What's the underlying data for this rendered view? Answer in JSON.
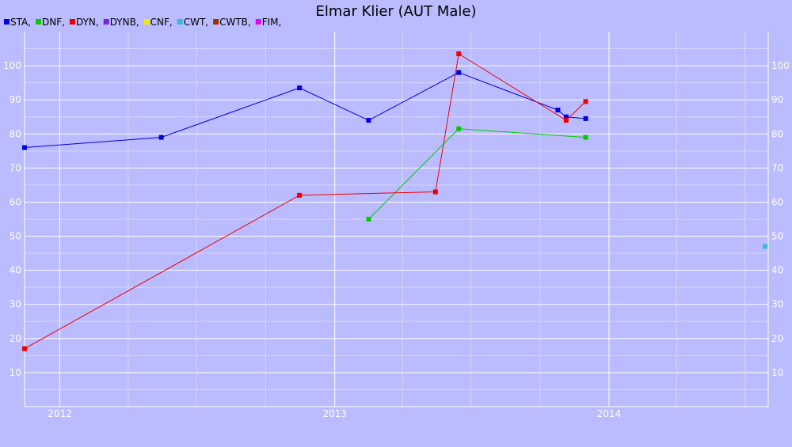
{
  "chart_data": {
    "type": "line",
    "title": "Elmar Klier (AUT Male)",
    "legend": {
      "placement": "top-left",
      "entries": [
        {
          "label": "STA,",
          "color": "#0000DD"
        },
        {
          "label": "DNF,",
          "color": "#00CC00"
        },
        {
          "label": "DYN,",
          "color": "#EE0000"
        },
        {
          "label": "DYNB,",
          "color": "#7722DD"
        },
        {
          "label": "CNF,",
          "color": "#EEEE00"
        },
        {
          "label": "CWT,",
          "color": "#33BBDD"
        },
        {
          "label": "CWTB,",
          "color": "#993300"
        },
        {
          "label": "FIM,",
          "color": "#EE00EE"
        }
      ]
    },
    "x_axis": {
      "type": "date",
      "range": [
        "2011-11-15",
        "2014-08-01"
      ],
      "tick_labels": [
        {
          "label": "2012",
          "date": "2012-01-01"
        },
        {
          "label": "2013",
          "date": "2013-01-01"
        },
        {
          "label": "2014",
          "date": "2014-01-01"
        }
      ],
      "grid": true
    },
    "y_axis": {
      "range": [
        0,
        110
      ],
      "ticks": [
        10,
        20,
        30,
        40,
        50,
        60,
        70,
        80,
        90,
        100
      ],
      "grid": true,
      "labels_both_sides": true
    },
    "series": [
      {
        "name": "STA,",
        "color": "#0000DD",
        "points": [
          {
            "x": "2011-11-15",
            "y": 76
          },
          {
            "x": "2012-05-15",
            "y": 79
          },
          {
            "x": "2012-11-15",
            "y": 93.5
          },
          {
            "x": "2013-02-15",
            "y": 84
          },
          {
            "x": "2013-06-15",
            "y": 98
          },
          {
            "x": "2013-10-25",
            "y": 87
          },
          {
            "x": "2013-11-05",
            "y": 85
          },
          {
            "x": "2013-12-01",
            "y": 84.5
          }
        ]
      },
      {
        "name": "DNF,",
        "color": "#00CC00",
        "points": [
          {
            "x": "2013-02-15",
            "y": 55
          },
          {
            "x": "2013-06-15",
            "y": 81.5
          },
          {
            "x": "2013-12-01",
            "y": 79
          }
        ]
      },
      {
        "name": "DYN,",
        "color": "#EE0000",
        "points": [
          {
            "x": "2011-11-15",
            "y": 17
          },
          {
            "x": "2012-11-15",
            "y": 62
          },
          {
            "x": "2013-05-15",
            "y": 63
          },
          {
            "x": "2013-06-15",
            "y": 103.5
          },
          {
            "x": "2013-11-05",
            "y": 84
          },
          {
            "x": "2013-12-01",
            "y": 89.5
          }
        ]
      },
      {
        "name": "CWT,",
        "color": "#33BBDD",
        "points": [
          {
            "x": "2014-07-28",
            "y": 47
          }
        ]
      }
    ]
  }
}
